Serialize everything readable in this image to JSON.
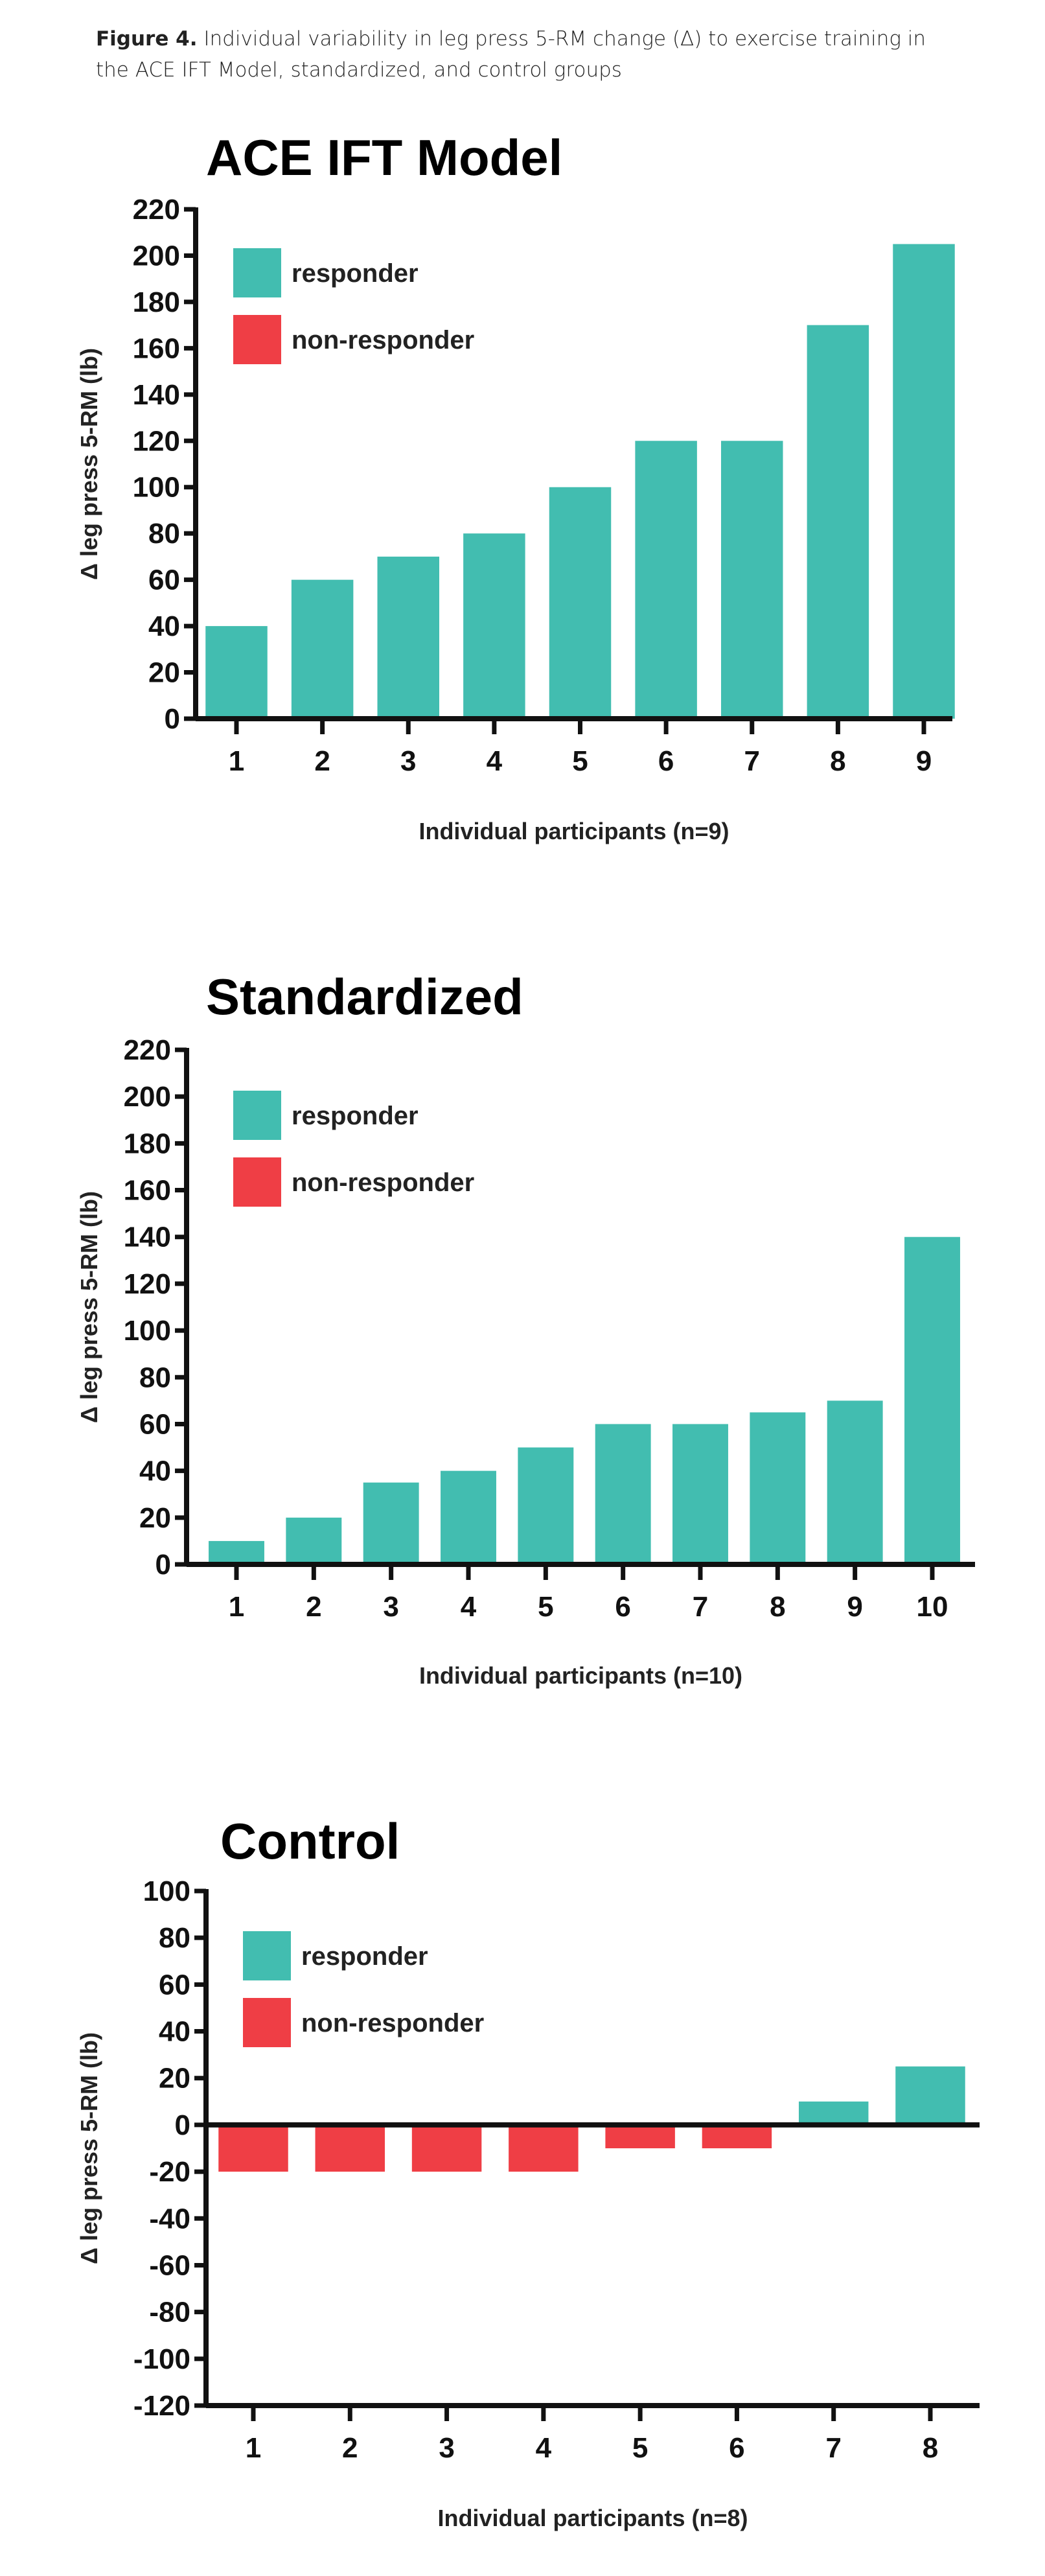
{
  "caption": {
    "label": "Figure 4.",
    "text": "Individual variability in leg press 5-RM change (Δ) to exercise training in the ACE IFT Model, standardized, and control groups"
  },
  "colors": {
    "responder": "#42BDB0",
    "non_responder": "#EF3E45"
  },
  "chart_data": [
    {
      "type": "bar",
      "title": "ACE IFT Model",
      "xlabel": "Individual participants (n=9)",
      "ylabel": "Δ leg press 5-RM (lb)",
      "categories": [
        "1",
        "2",
        "3",
        "4",
        "5",
        "6",
        "7",
        "8",
        "9"
      ],
      "values": [
        40,
        60,
        70,
        80,
        100,
        120,
        120,
        170,
        205
      ],
      "groups": [
        "responder",
        "responder",
        "responder",
        "responder",
        "responder",
        "responder",
        "responder",
        "responder",
        "responder"
      ],
      "ylim": [
        0,
        220
      ],
      "yticks": [
        "0",
        "20",
        "40",
        "60",
        "80",
        "100",
        "120",
        "140",
        "160",
        "180",
        "200",
        "220"
      ],
      "legend": [
        "responder",
        "non-responder"
      ],
      "legend_position": "top-left",
      "grid": false
    },
    {
      "type": "bar",
      "title": "Standardized",
      "xlabel": "Individual participants (n=10)",
      "ylabel": "Δ leg press 5-RM (lb)",
      "categories": [
        "1",
        "2",
        "3",
        "4",
        "5",
        "6",
        "7",
        "8",
        "9",
        "10"
      ],
      "values": [
        10,
        20,
        35,
        40,
        50,
        60,
        60,
        65,
        70,
        140
      ],
      "groups": [
        "responder",
        "responder",
        "responder",
        "responder",
        "responder",
        "responder",
        "responder",
        "responder",
        "responder",
        "responder"
      ],
      "ylim": [
        0,
        220
      ],
      "yticks": [
        "0",
        "20",
        "40",
        "60",
        "80",
        "100",
        "120",
        "140",
        "160",
        "180",
        "200",
        "220"
      ],
      "legend": [
        "responder",
        "non-responder"
      ],
      "legend_position": "top-left",
      "grid": false
    },
    {
      "type": "bar",
      "title": "Control",
      "xlabel": "Individual participants (n=8)",
      "ylabel": "Δ leg press 5-RM (lb)",
      "categories": [
        "1",
        "2",
        "3",
        "4",
        "5",
        "6",
        "7",
        "8"
      ],
      "values": [
        -20,
        -20,
        -20,
        -20,
        -10,
        -10,
        10,
        25
      ],
      "groups": [
        "non-responder",
        "non-responder",
        "non-responder",
        "non-responder",
        "non-responder",
        "non-responder",
        "responder",
        "responder"
      ],
      "ylim": [
        -120,
        100
      ],
      "yticks": [
        "-120",
        "-100",
        "-80",
        "-60",
        "-40",
        "-20",
        "0",
        "20",
        "40",
        "60",
        "80",
        "100"
      ],
      "legend": [
        "responder",
        "non-responder"
      ],
      "legend_position": "top-left",
      "grid": false
    }
  ]
}
